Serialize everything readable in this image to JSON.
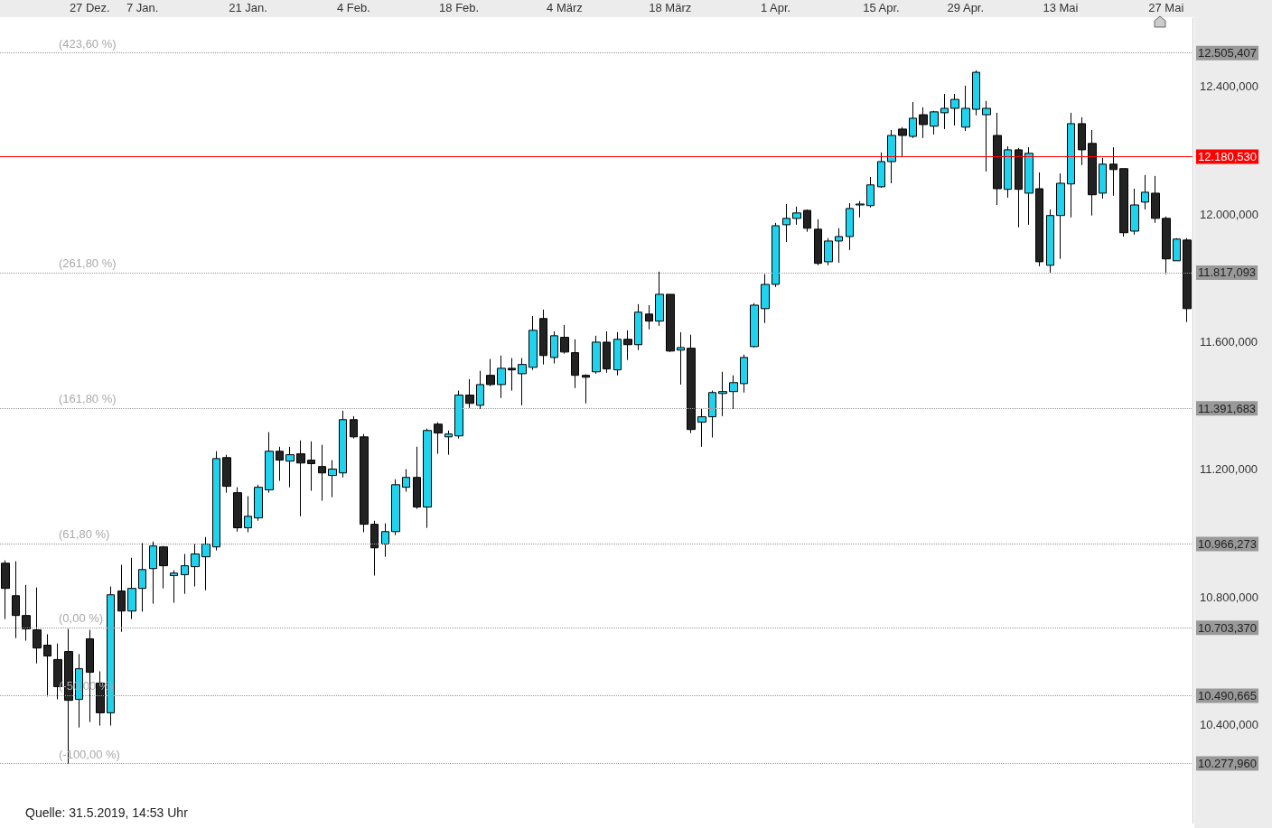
{
  "chart_data": {
    "type": "candlestick",
    "categories": [
      null,
      null,
      null,
      null,
      null,
      null,
      null,
      null,
      "27 Dez.",
      null,
      null,
      null,
      null,
      "7 Jan.",
      null,
      null,
      null,
      null,
      null,
      null,
      null,
      null,
      null,
      "21 Jan.",
      null,
      null,
      null,
      null,
      null,
      null,
      null,
      null,
      null,
      "4 Feb.",
      null,
      null,
      null,
      null,
      null,
      null,
      null,
      null,
      null,
      "18 Feb.",
      null,
      null,
      null,
      null,
      null,
      null,
      null,
      null,
      null,
      "4 März",
      null,
      null,
      null,
      null,
      null,
      null,
      null,
      null,
      null,
      "18 März",
      null,
      null,
      null,
      null,
      null,
      null,
      null,
      null,
      null,
      "1 Apr.",
      null,
      null,
      null,
      null,
      null,
      null,
      null,
      null,
      null,
      "15 Apr.",
      null,
      null,
      null,
      null,
      null,
      null,
      null,
      "29 Apr.",
      null,
      null,
      null,
      null,
      null,
      null,
      null,
      null,
      "13 Mai",
      null,
      null,
      null,
      null,
      null,
      null,
      null,
      null,
      null,
      "27 Mai",
      null,
      null
    ],
    "ohlc": [
      [
        10906,
        10915,
        10731,
        10827
      ],
      [
        10804,
        10912,
        10671,
        10742
      ],
      [
        10742,
        10838,
        10663,
        10700
      ],
      [
        10697,
        10830,
        10592,
        10640
      ],
      [
        10649,
        10683,
        10488,
        10615
      ],
      [
        10604,
        10654,
        10479,
        10519
      ],
      [
        10629,
        10700,
        10278,
        10476
      ],
      [
        10479,
        10621,
        10391,
        10575
      ],
      [
        10669,
        10697,
        10408,
        10564
      ],
      [
        10530,
        10567,
        10397,
        10437
      ],
      [
        10437,
        10833,
        10397,
        10807
      ],
      [
        10819,
        10901,
        10691,
        10756
      ],
      [
        10756,
        10923,
        10731,
        10827
      ],
      [
        10827,
        10969,
        10754,
        10886
      ],
      [
        10889,
        10974,
        10779,
        10960
      ],
      [
        10957,
        10960,
        10827,
        10898
      ],
      [
        10867,
        10884,
        10782,
        10875
      ],
      [
        10870,
        10935,
        10810,
        10898
      ],
      [
        10895,
        10966,
        10833,
        10935
      ],
      [
        10926,
        10988,
        10821,
        10966
      ],
      [
        10957,
        11257,
        10946,
        11234
      ],
      [
        11237,
        11246,
        11127,
        11147
      ],
      [
        11127,
        11144,
        11005,
        11017
      ],
      [
        11017,
        11116,
        11003,
        11053
      ],
      [
        11048,
        11152,
        11039,
        11144
      ],
      [
        11136,
        11317,
        11127,
        11257
      ],
      [
        11257,
        11271,
        11164,
        11229
      ],
      [
        11226,
        11271,
        11144,
        11246
      ],
      [
        11249,
        11291,
        11053,
        11220
      ],
      [
        11229,
        11288,
        11133,
        11218
      ],
      [
        11209,
        11277,
        11102,
        11189
      ],
      [
        11181,
        11229,
        11113,
        11201
      ],
      [
        11189,
        11384,
        11175,
        11356
      ],
      [
        11356,
        11367,
        11297,
        11302
      ],
      [
        11302,
        11311,
        11003,
        11028
      ],
      [
        11028,
        11039,
        10867,
        10954
      ],
      [
        10966,
        11031,
        10926,
        11005
      ],
      [
        11005,
        11169,
        10994,
        11152
      ],
      [
        11144,
        11201,
        11130,
        11175
      ],
      [
        11175,
        11271,
        11076,
        11082
      ],
      [
        11082,
        11328,
        11017,
        11322
      ],
      [
        11342,
        11348,
        11249,
        11314
      ],
      [
        11302,
        11322,
        11246,
        11311
      ],
      [
        11305,
        11447,
        11297,
        11433
      ],
      [
        11433,
        11483,
        11393,
        11407
      ],
      [
        11401,
        11509,
        11390,
        11466
      ],
      [
        11495,
        11546,
        11461,
        11466
      ],
      [
        11466,
        11557,
        11424,
        11517
      ],
      [
        11517,
        11549,
        11447,
        11512
      ],
      [
        11500,
        11549,
        11401,
        11529
      ],
      [
        11520,
        11681,
        11512,
        11636
      ],
      [
        11673,
        11701,
        11529,
        11557
      ],
      [
        11551,
        11633,
        11532,
        11619
      ],
      [
        11614,
        11653,
        11563,
        11568
      ],
      [
        11566,
        11608,
        11455,
        11495
      ],
      [
        11495,
        11498,
        11407,
        11489
      ],
      [
        11506,
        11619,
        11500,
        11599
      ],
      [
        11599,
        11633,
        11503,
        11515
      ],
      [
        11512,
        11630,
        11495,
        11608
      ],
      [
        11608,
        11636,
        11543,
        11591
      ],
      [
        11591,
        11718,
        11574,
        11693
      ],
      [
        11687,
        11715,
        11639,
        11665
      ],
      [
        11665,
        11820,
        11650,
        11749
      ],
      [
        11749,
        11749,
        11568,
        11571
      ],
      [
        11574,
        11630,
        11466,
        11582
      ],
      [
        11580,
        11622,
        11314,
        11325
      ],
      [
        11348,
        11390,
        11271,
        11365
      ],
      [
        11365,
        11447,
        11300,
        11441
      ],
      [
        11438,
        11506,
        11367,
        11444
      ],
      [
        11444,
        11495,
        11390,
        11472
      ],
      [
        11469,
        11560,
        11441,
        11551
      ],
      [
        11585,
        11721,
        11582,
        11715
      ],
      [
        11704,
        11812,
        11659,
        11780
      ],
      [
        11780,
        11973,
        11772,
        11964
      ],
      [
        11967,
        12032,
        11913,
        11987
      ],
      [
        11987,
        12024,
        11967,
        12004
      ],
      [
        12012,
        12015,
        11945,
        11956
      ],
      [
        11953,
        11984,
        11840,
        11846
      ],
      [
        11851,
        11925,
        11840,
        11916
      ],
      [
        11916,
        11956,
        11848,
        11930
      ],
      [
        11930,
        12035,
        11888,
        12018
      ],
      [
        12029,
        12041,
        11990,
        12032
      ],
      [
        12027,
        12117,
        12021,
        12092
      ],
      [
        12086,
        12194,
        12083,
        12165
      ],
      [
        12165,
        12264,
        12097,
        12247
      ],
      [
        12267,
        12273,
        12182,
        12247
      ],
      [
        12244,
        12352,
        12239,
        12301
      ],
      [
        12312,
        12335,
        12239,
        12281
      ],
      [
        12276,
        12324,
        12250,
        12321
      ],
      [
        12318,
        12377,
        12267,
        12332
      ],
      [
        12332,
        12377,
        12278,
        12360
      ],
      [
        12273,
        12403,
        12261,
        12332
      ],
      [
        12329,
        12451,
        12310,
        12445
      ],
      [
        12312,
        12355,
        12134,
        12332
      ],
      [
        12247,
        12318,
        12029,
        12080
      ],
      [
        12078,
        12213,
        12052,
        12202
      ],
      [
        12202,
        12208,
        11959,
        12078
      ],
      [
        12066,
        12210,
        11967,
        12191
      ],
      [
        12080,
        12131,
        11837,
        11851
      ],
      [
        11840,
        12015,
        11817,
        11996
      ],
      [
        11996,
        12128,
        11860,
        12097
      ],
      [
        12095,
        12318,
        11990,
        12284
      ],
      [
        12284,
        12304,
        12154,
        12202
      ],
      [
        12222,
        12264,
        11996,
        12061
      ],
      [
        12066,
        12177,
        12049,
        12157
      ],
      [
        12157,
        12210,
        12058,
        12140
      ],
      [
        12143,
        12143,
        11930,
        11942
      ],
      [
        11947,
        12080,
        11936,
        12029
      ],
      [
        12038,
        12123,
        12015,
        12069
      ],
      [
        12066,
        12120,
        11973,
        11987
      ],
      [
        11987,
        11993,
        11812,
        11860
      ],
      [
        11854,
        11925,
        11854,
        11922
      ],
      [
        11919,
        11925,
        11662,
        11704
      ]
    ],
    "colors": [
      "#222222",
      "#222222",
      "#222222",
      "#222222",
      "#222222",
      "#222222",
      "#222222",
      "#1fd3ef",
      "#222222",
      "#222222",
      "#1fd3ef",
      "#222222",
      "#1fd3ef",
      "#1fd3ef",
      "#1fd3ef",
      "#222222",
      "#1fd3ef",
      "#1fd3ef",
      "#1fd3ef",
      "#1fd3ef",
      "#1fd3ef",
      "#222222",
      "#222222",
      "#1fd3ef",
      "#1fd3ef",
      "#1fd3ef",
      "#222222",
      "#1fd3ef",
      "#222222",
      "#222222",
      "#222222",
      "#1fd3ef",
      "#1fd3ef",
      "#222222",
      "#222222",
      "#222222",
      "#1fd3ef",
      "#1fd3ef",
      "#1fd3ef",
      "#222222",
      "#1fd3ef",
      "#222222",
      "#1fd3ef",
      "#1fd3ef",
      "#222222",
      "#1fd3ef",
      "#222222",
      "#1fd3ef",
      "#222222",
      "#1fd3ef",
      "#1fd3ef",
      "#222222",
      "#1fd3ef",
      "#222222",
      "#222222",
      "#222222",
      "#1fd3ef",
      "#222222",
      "#1fd3ef",
      "#222222",
      "#1fd3ef",
      "#222222",
      "#1fd3ef",
      "#222222",
      "#1fd3ef",
      "#222222",
      "#1fd3ef",
      "#1fd3ef",
      "#1fd3ef",
      "#1fd3ef",
      "#1fd3ef",
      "#1fd3ef",
      "#1fd3ef",
      "#1fd3ef",
      "#1fd3ef",
      "#1fd3ef",
      "#222222",
      "#222222",
      "#1fd3ef",
      "#1fd3ef",
      "#1fd3ef",
      "#1fd3ef",
      "#1fd3ef",
      "#1fd3ef",
      "#1fd3ef",
      "#222222",
      "#1fd3ef",
      "#222222",
      "#1fd3ef",
      "#1fd3ef",
      "#1fd3ef",
      "#1fd3ef",
      "#1fd3ef",
      "#1fd3ef",
      "#222222",
      "#1fd3ef",
      "#222222",
      "#1fd3ef",
      "#222222",
      "#1fd3ef",
      "#1fd3ef",
      "#1fd3ef",
      "#222222",
      "#222222",
      "#1fd3ef",
      "#222222",
      "#222222",
      "#1fd3ef",
      "#1fd3ef",
      "#222222",
      "#222222",
      "#1fd3ef",
      "#222222"
    ],
    "ylim": [
      10090,
      12615
    ],
    "yticks": [
      {
        "value": 10400,
        "label": "10.400,000"
      },
      {
        "value": 10800,
        "label": "10.800,000"
      },
      {
        "value": 11200,
        "label": "11.200,000"
      },
      {
        "value": 11600,
        "label": "11.600,000"
      },
      {
        "value": 12000,
        "label": "12.000,000"
      },
      {
        "value": 12400,
        "label": "12.400,000"
      }
    ],
    "ref_lines": [
      {
        "axis": "y",
        "value": 12505.407,
        "label": "12.505,407",
        "color": "#999999",
        "line_style": "dotted"
      },
      {
        "axis": "y",
        "value": 11817.093,
        "label": "11.817,093",
        "color": "#999999",
        "line_style": "dotted"
      },
      {
        "axis": "y",
        "value": 11391.683,
        "label": "11.391,683",
        "color": "#999999",
        "line_style": "dotted"
      },
      {
        "axis": "y",
        "value": 10966.273,
        "label": "10.966,273",
        "color": "#999999",
        "line_style": "dotted"
      },
      {
        "axis": "y",
        "value": 10703.37,
        "label": "10.703,370",
        "color": "#999999",
        "line_style": "dotted"
      },
      {
        "axis": "y",
        "value": 10490.665,
        "label": "10.490,665",
        "color": "#999999",
        "line_style": "dotted"
      },
      {
        "axis": "y",
        "value": 10277.96,
        "label": "10.277,960",
        "color": "#999999",
        "line_style": "dotted"
      },
      {
        "axis": "y",
        "value": 12180.53,
        "label": "12.180,530",
        "color": "#ff0000",
        "line_style": "solid"
      }
    ],
    "grid": false,
    "annotations": [
      {
        "text": "(423,60 %)",
        "y": 12505.407
      },
      {
        "text": "(261,80 %)",
        "y": 11817.093
      },
      {
        "text": "(161,80 %)",
        "y": 11391.683
      },
      {
        "text": "(61,80 %)",
        "y": 10966.273
      },
      {
        "text": "(0,00 %)",
        "y": 10703.37
      },
      {
        "text": "(-50,00 %)",
        "y": 10490.665
      },
      {
        "text": "(-100,00 %)",
        "y": 10277.96
      },
      "Quelle: 31.5.2019, 14:53 Uhr"
    ]
  }
}
